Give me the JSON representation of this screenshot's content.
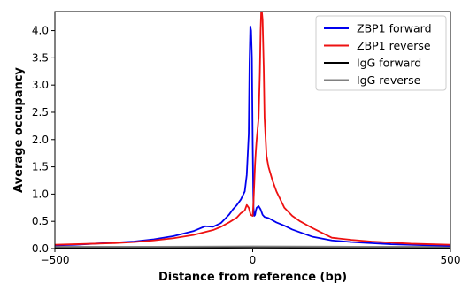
{
  "chart_data": {
    "type": "line",
    "title": "",
    "xlabel": "Distance from reference (bp)",
    "ylabel": "Average occupancy",
    "xlim": [
      -500,
      500
    ],
    "ylim": [
      0,
      4.35
    ],
    "xticks": [
      -500,
      0,
      500
    ],
    "xtick_labels": [
      "−500",
      "0",
      "500"
    ],
    "yticks": [
      0.0,
      0.5,
      1.0,
      1.5,
      2.0,
      2.5,
      3.0,
      3.5,
      4.0
    ],
    "ytick_labels": [
      "0.0",
      "0.5",
      "1.0",
      "1.5",
      "2.0",
      "2.5",
      "3.0",
      "3.5",
      "4.0"
    ],
    "grid": false,
    "legend_position": "top-right",
    "series": [
      {
        "name": "ZBP1 forward",
        "color": "#0000ee",
        "x": [
          -500,
          -450,
          -400,
          -350,
          -300,
          -250,
          -200,
          -150,
          -120,
          -100,
          -80,
          -60,
          -50,
          -40,
          -30,
          -20,
          -15,
          -10,
          -8,
          -6,
          -4,
          -2,
          0,
          2,
          4,
          6,
          8,
          10,
          15,
          20,
          25,
          30,
          40,
          60,
          80,
          100,
          150,
          200,
          250,
          300,
          350,
          400,
          450,
          500
        ],
        "y": [
          0.06,
          0.07,
          0.09,
          0.11,
          0.13,
          0.17,
          0.23,
          0.32,
          0.41,
          0.4,
          0.47,
          0.62,
          0.72,
          0.8,
          0.9,
          1.05,
          1.35,
          2.1,
          3.4,
          4.08,
          4.0,
          3.5,
          1.9,
          0.75,
          0.6,
          0.62,
          0.7,
          0.75,
          0.78,
          0.72,
          0.62,
          0.58,
          0.56,
          0.48,
          0.42,
          0.35,
          0.22,
          0.15,
          0.12,
          0.1,
          0.08,
          0.07,
          0.06,
          0.05
        ]
      },
      {
        "name": "ZBP1 reverse",
        "color": "#ee1111",
        "x": [
          -500,
          -450,
          -400,
          -350,
          -300,
          -250,
          -200,
          -150,
          -100,
          -80,
          -60,
          -40,
          -30,
          -20,
          -15,
          -10,
          -5,
          0,
          2,
          4,
          6,
          8,
          10,
          12,
          15,
          18,
          20,
          22,
          25,
          28,
          30,
          35,
          40,
          50,
          60,
          80,
          100,
          120,
          150,
          200,
          250,
          300,
          350,
          400,
          450,
          500
        ],
        "y": [
          0.07,
          0.08,
          0.09,
          0.1,
          0.12,
          0.15,
          0.19,
          0.25,
          0.34,
          0.4,
          0.48,
          0.57,
          0.65,
          0.7,
          0.8,
          0.75,
          0.62,
          0.6,
          0.85,
          1.2,
          1.55,
          1.8,
          2.0,
          2.15,
          2.4,
          3.2,
          4.0,
          4.45,
          4.2,
          3.3,
          2.4,
          1.7,
          1.5,
          1.25,
          1.05,
          0.75,
          0.6,
          0.5,
          0.38,
          0.2,
          0.16,
          0.13,
          0.11,
          0.09,
          0.08,
          0.07
        ]
      },
      {
        "name": "IgG forward",
        "color": "#000000",
        "x": [
          -500,
          -250,
          0,
          250,
          500
        ],
        "y": [
          0.02,
          0.02,
          0.025,
          0.02,
          0.02
        ]
      },
      {
        "name": "IgG reverse",
        "color": "#808080",
        "x": [
          -500,
          -250,
          0,
          250,
          500
        ],
        "y": [
          0.035,
          0.035,
          0.04,
          0.035,
          0.035
        ]
      }
    ]
  }
}
